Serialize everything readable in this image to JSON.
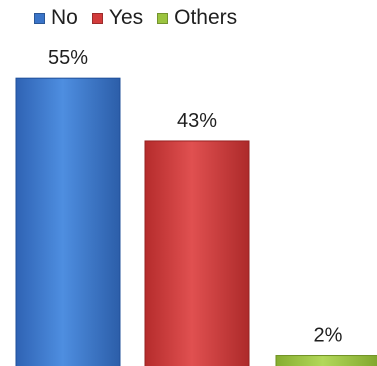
{
  "chart_data": {
    "type": "bar",
    "categories": [
      "No",
      "Yes",
      "Others"
    ],
    "values": [
      55,
      43,
      2
    ],
    "value_labels": [
      "55%",
      "43%",
      "2%"
    ],
    "ylim": [
      0,
      60
    ],
    "grid": false,
    "legend_position": "top",
    "series_colors": [
      "#3a74c8",
      "#d23b3b",
      "#9bc43f"
    ]
  },
  "legend": {
    "items": [
      {
        "label": "No",
        "color": "#3a74c8"
      },
      {
        "label": "Yes",
        "color": "#d23b3b"
      },
      {
        "label": "Others",
        "color": "#9bc43f"
      }
    ]
  }
}
